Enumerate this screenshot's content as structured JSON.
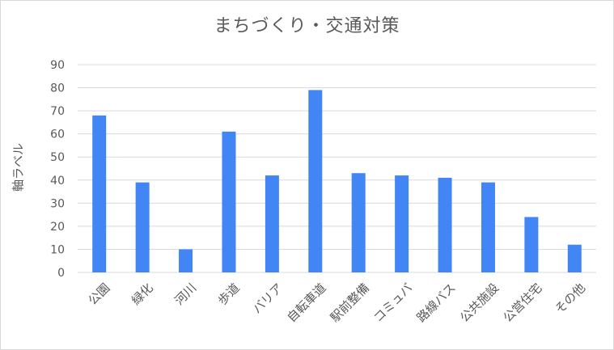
{
  "chart_data": {
    "type": "bar",
    "title": "まちづくり・交通対策",
    "xlabel": "",
    "ylabel": "軸ラベル",
    "ylim": [
      0,
      90
    ],
    "yticks": [
      0,
      10,
      20,
      30,
      40,
      50,
      60,
      70,
      80,
      90
    ],
    "categories": [
      "公園",
      "緑化",
      "河川",
      "歩道",
      "バリア",
      "自転車道",
      "駅前整備",
      "コミュバ",
      "路線バス",
      "公共施設",
      "公営住宅",
      "その他"
    ],
    "values": [
      68,
      39,
      10,
      61,
      42,
      79,
      43,
      42,
      41,
      39,
      24,
      12
    ],
    "grid": true,
    "legend": "none",
    "colors": {
      "bar": "#4285f4",
      "grid": "#d9d9d9",
      "text": "#595959"
    }
  }
}
